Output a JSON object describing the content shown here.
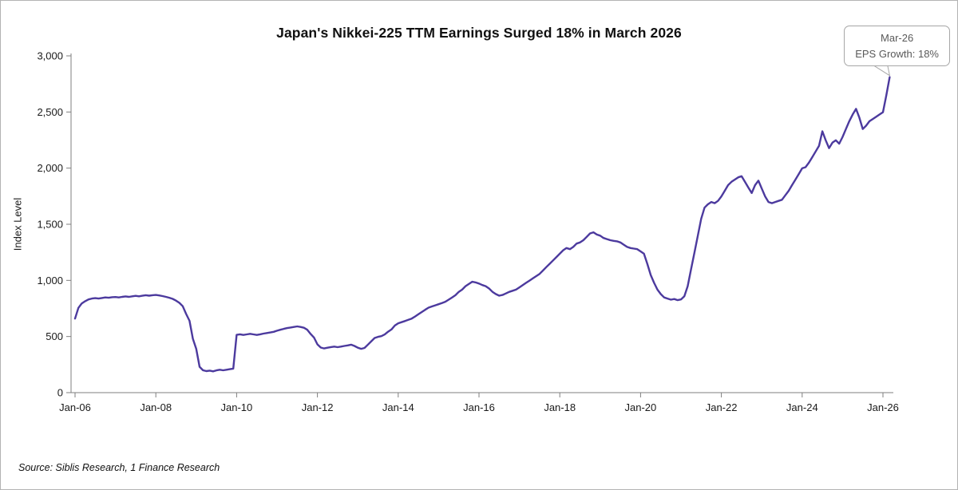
{
  "title": "Japan's Nikkei-225 TTM Earnings Surged 18% in March 2026",
  "source_note": "Source: Siblis Research, 1 Finance Research",
  "callout": {
    "line1": "Mar-26",
    "line2": "EPS Growth: 18%"
  },
  "colors": {
    "line": "#4C3A9E",
    "axis": "#7f7f7f",
    "tick_label": "#1a1a1a",
    "callout_border": "#a6a6a6",
    "callout_text": "#595959",
    "figure_border": "#b3b3b3"
  },
  "chart_data": {
    "type": "line",
    "title": "Japan's Nikkei-225 TTM Earnings Surged 18% in March 2026",
    "xlabel": "",
    "ylabel": "Index Level",
    "ylim": [
      0,
      3000
    ],
    "y_ticks": [
      0,
      500,
      1000,
      1500,
      2000,
      2500,
      3000
    ],
    "x_tick_labels": [
      "Jan-06",
      "Jan-08",
      "Jan-10",
      "Jan-12",
      "Jan-14",
      "Jan-16",
      "Jan-18",
      "Jan-20",
      "Jan-22",
      "Jan-24",
      "Jan-26"
    ],
    "x_start": "Jan-06",
    "x_end": "Mar-26",
    "frequency": "monthly",
    "grid": false,
    "legend": false,
    "annotation": {
      "x": "Mar-26",
      "text": "EPS Growth: 18%"
    },
    "values": [
      660,
      755,
      795,
      815,
      830,
      838,
      842,
      838,
      843,
      848,
      845,
      850,
      852,
      848,
      853,
      857,
      853,
      858,
      862,
      858,
      863,
      868,
      864,
      868,
      870,
      866,
      860,
      853,
      845,
      835,
      820,
      800,
      770,
      700,
      640,
      480,
      390,
      230,
      200,
      192,
      196,
      190,
      198,
      204,
      199,
      204,
      209,
      214,
      515,
      520,
      514,
      519,
      524,
      519,
      514,
      520,
      526,
      531,
      536,
      542,
      552,
      560,
      568,
      575,
      580,
      585,
      590,
      585,
      578,
      560,
      522,
      490,
      430,
      402,
      394,
      400,
      406,
      410,
      405,
      410,
      416,
      421,
      427,
      416,
      400,
      390,
      398,
      428,
      458,
      487,
      497,
      503,
      518,
      543,
      563,
      598,
      618,
      628,
      638,
      648,
      660,
      678,
      698,
      718,
      738,
      757,
      768,
      778,
      788,
      798,
      810,
      828,
      848,
      868,
      898,
      918,
      948,
      968,
      988,
      982,
      972,
      958,
      948,
      928,
      898,
      878,
      864,
      870,
      884,
      898,
      908,
      918,
      938,
      958,
      978,
      998,
      1018,
      1038,
      1058,
      1088,
      1118,
      1148,
      1178,
      1208,
      1238,
      1268,
      1288,
      1278,
      1298,
      1328,
      1338,
      1358,
      1388,
      1418,
      1428,
      1408,
      1398,
      1378,
      1368,
      1358,
      1352,
      1348,
      1338,
      1318,
      1298,
      1288,
      1283,
      1278,
      1258,
      1238,
      1148,
      1048,
      978,
      918,
      878,
      848,
      838,
      828,
      834,
      824,
      830,
      858,
      948,
      1098,
      1248,
      1398,
      1548,
      1648,
      1678,
      1698,
      1688,
      1708,
      1748,
      1798,
      1848,
      1878,
      1898,
      1918,
      1928,
      1878,
      1828,
      1778,
      1848,
      1888,
      1818,
      1748,
      1698,
      1688,
      1698,
      1708,
      1718,
      1758,
      1798,
      1848,
      1898,
      1948,
      1998,
      2008,
      2048,
      2098,
      2148,
      2198,
      2328,
      2248,
      2178,
      2228,
      2248,
      2218,
      2278,
      2348,
      2418,
      2478,
      2528,
      2448,
      2348,
      2378,
      2418,
      2438,
      2458,
      2478,
      2498,
      2648,
      2810
    ]
  }
}
